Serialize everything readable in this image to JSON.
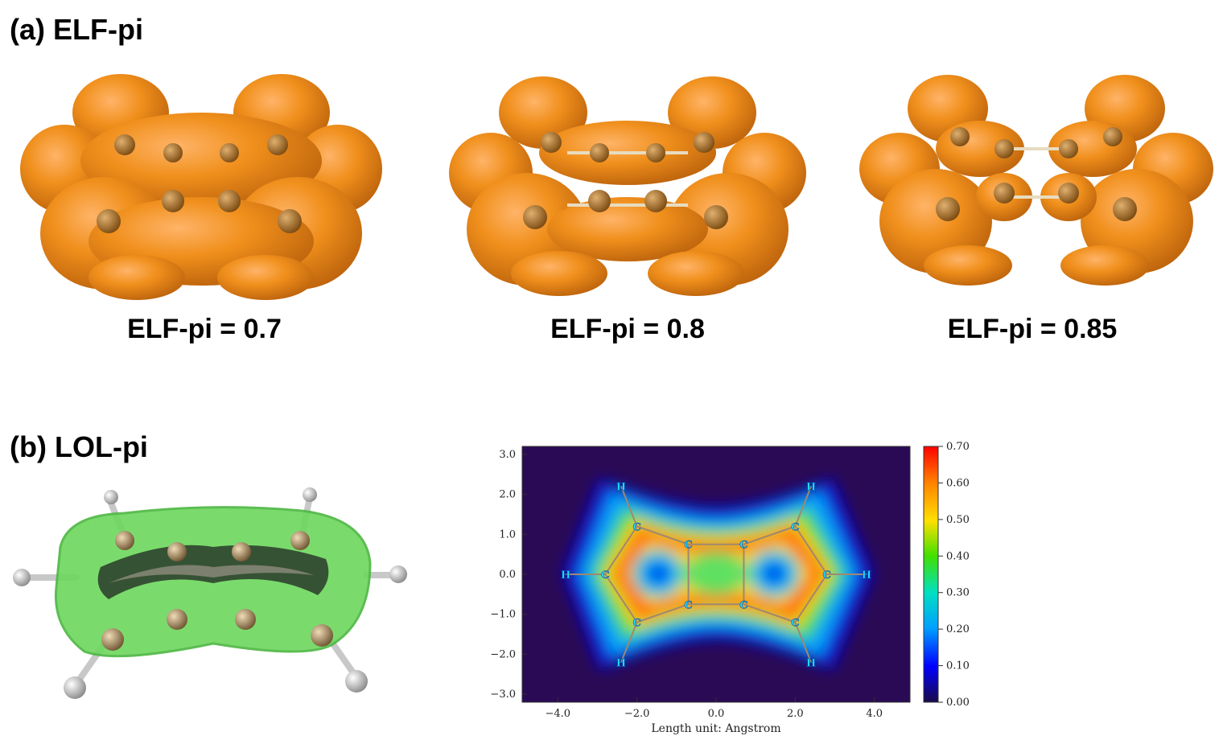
{
  "panel_a": {
    "title": "(a) ELF-pi",
    "captions": [
      "ELF-pi = 0.7",
      "ELF-pi = 0.8",
      "ELF-pi = 0.85"
    ]
  },
  "panel_b": {
    "title": "(b) LOL-pi"
  },
  "colors": {
    "elf_isosurface": "#e07a00",
    "lol_isosurface": "#7be06a",
    "carbon": "#a0825a",
    "hydrogen": "#e8e8e8"
  },
  "chart_data": {
    "type": "heatmap",
    "xlabel": "Length unit: Angstrom",
    "x_ticks": [
      "−4.0",
      "−2.0",
      "0.0",
      "2.0",
      "4.0"
    ],
    "y_ticks": [
      "3.0",
      "2.0",
      "1.0",
      "0.0",
      "−1.0",
      "−2.0",
      "−3.0"
    ],
    "xlim": [
      -4.9,
      4.9
    ],
    "ylim": [
      -3.2,
      3.2
    ],
    "colorbar_ticks": [
      "0.70",
      "0.60",
      "0.50",
      "0.40",
      "0.30",
      "0.20",
      "0.10",
      "0.00"
    ],
    "colorbar_range": [
      0.0,
      0.7
    ],
    "atoms": [
      {
        "label": "H",
        "x": -2.4,
        "y": 2.2
      },
      {
        "label": "H",
        "x": 2.4,
        "y": 2.2
      },
      {
        "label": "C",
        "x": -2.0,
        "y": 1.2
      },
      {
        "label": "C",
        "x": 2.0,
        "y": 1.2
      },
      {
        "label": "C",
        "x": -0.7,
        "y": 0.75
      },
      {
        "label": "C",
        "x": 0.7,
        "y": 0.75
      },
      {
        "label": "H",
        "x": -3.8,
        "y": 0.0
      },
      {
        "label": "C",
        "x": -2.8,
        "y": 0.0
      },
      {
        "label": "C",
        "x": 2.8,
        "y": 0.0
      },
      {
        "label": "H",
        "x": 3.8,
        "y": 0.0
      },
      {
        "label": "C",
        "x": -0.7,
        "y": -0.75
      },
      {
        "label": "C",
        "x": 0.7,
        "y": -0.75
      },
      {
        "label": "C",
        "x": -2.0,
        "y": -1.2
      },
      {
        "label": "C",
        "x": 2.0,
        "y": -1.2
      },
      {
        "label": "H",
        "x": -2.4,
        "y": -2.2
      },
      {
        "label": "H",
        "x": 2.4,
        "y": -2.2
      }
    ]
  }
}
